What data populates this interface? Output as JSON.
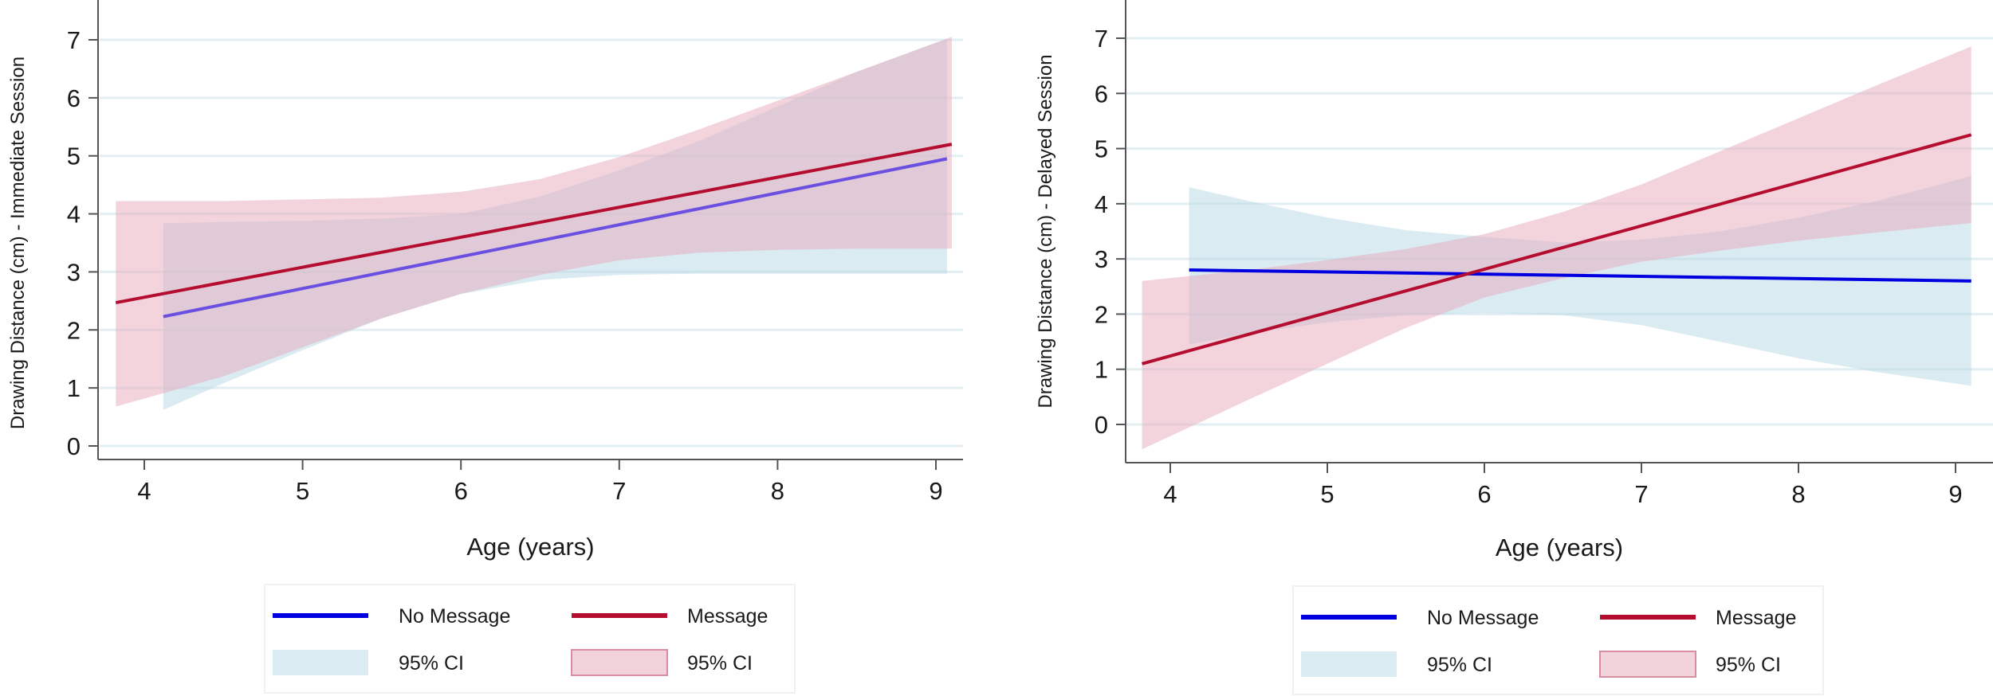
{
  "chart_data": [
    {
      "type": "line",
      "title": "",
      "xlabel": "Age (years)",
      "ylabel": "Drawing Distance (cm) - Immediate Session",
      "xlim": [
        3.65,
        9.25
      ],
      "ylim": [
        -0.3,
        7.8
      ],
      "xticks": [
        4,
        5,
        6,
        7,
        8,
        9
      ],
      "yticks": [
        0,
        1,
        2,
        3,
        4,
        5,
        6,
        7
      ],
      "grid": true,
      "legend_position": "bottom",
      "series": [
        {
          "name": "No Message",
          "color": "#0000e0",
          "x": [
            4.12,
            9.07
          ],
          "y": [
            2.23,
            4.95
          ],
          "ci": {
            "label": "95% CI",
            "color": "#dbebf2",
            "x": [
              4.12,
              4.5,
              5.0,
              5.5,
              6.0,
              6.5,
              7.0,
              7.5,
              8.0,
              8.5,
              9.07
            ],
            "lower": [
              0.62,
              1.08,
              1.65,
              2.2,
              2.62,
              2.86,
              2.95,
              2.97,
              2.97,
              2.97,
              2.97
            ],
            "upper": [
              3.84,
              3.86,
              3.88,
              3.92,
              4.0,
              4.3,
              4.75,
              5.25,
              5.85,
              6.45,
              7.02
            ]
          }
        },
        {
          "name": "Message",
          "color": "#b50d2f",
          "x": [
            3.82,
            9.1
          ],
          "y": [
            2.47,
            5.2
          ],
          "ci": {
            "label": "95% CI",
            "color": "#f2d3dc",
            "x": [
              3.82,
              4.5,
              5.0,
              5.5,
              6.0,
              6.5,
              7.0,
              7.5,
              8.0,
              8.5,
              9.1
            ],
            "lower": [
              0.68,
              1.2,
              1.7,
              2.2,
              2.62,
              2.95,
              3.2,
              3.33,
              3.38,
              3.4,
              3.4
            ],
            "upper": [
              4.22,
              4.22,
              4.25,
              4.28,
              4.38,
              4.6,
              4.98,
              5.45,
              5.95,
              6.45,
              7.05
            ]
          }
        }
      ],
      "legend": [
        {
          "label": "No Message",
          "kind": "line",
          "color": "#0000e0"
        },
        {
          "label": "Message",
          "kind": "line",
          "color": "#b50d2f"
        },
        {
          "label": "95% CI",
          "kind": "area",
          "color": "#dbebf2"
        },
        {
          "label": "95% CI",
          "kind": "area",
          "color": "#f2d3dc"
        }
      ]
    },
    {
      "type": "line",
      "title": "",
      "xlabel": "Age (years)",
      "ylabel": "Drawing Distance (cm) - Delayed Session",
      "xlim": [
        3.55,
        9.25
      ],
      "ylim": [
        -0.7,
        7.8
      ],
      "xticks": [
        4,
        5,
        6,
        7,
        8,
        9
      ],
      "yticks": [
        0,
        1,
        2,
        3,
        4,
        5,
        6,
        7
      ],
      "grid": true,
      "legend_position": "bottom",
      "series": [
        {
          "name": "No Message",
          "color": "#0000e0",
          "x": [
            4.12,
            9.1
          ],
          "y": [
            2.8,
            2.6
          ],
          "ci": {
            "label": "95% CI",
            "color": "#dbebf2",
            "x": [
              4.12,
              4.5,
              5.0,
              5.5,
              6.0,
              6.5,
              7.0,
              7.5,
              8.0,
              8.5,
              9.1
            ],
            "lower": [
              1.45,
              1.65,
              1.85,
              1.98,
              2.02,
              1.98,
              1.8,
              1.5,
              1.2,
              0.95,
              0.7
            ],
            "upper": [
              4.3,
              4.05,
              3.75,
              3.52,
              3.4,
              3.3,
              3.35,
              3.5,
              3.75,
              4.05,
              4.5
            ]
          }
        },
        {
          "name": "Message",
          "color": "#b50d2f",
          "x": [
            3.82,
            9.1
          ],
          "y": [
            1.1,
            5.25
          ],
          "ci": {
            "label": "95% CI",
            "color": "#f2d3dc",
            "x": [
              3.82,
              4.5,
              5.0,
              5.5,
              6.0,
              6.5,
              7.0,
              7.5,
              8.0,
              8.5,
              9.1
            ],
            "lower": [
              -0.45,
              0.45,
              1.1,
              1.75,
              2.3,
              2.65,
              2.95,
              3.15,
              3.33,
              3.48,
              3.65
            ],
            "upper": [
              2.6,
              2.8,
              2.98,
              3.18,
              3.45,
              3.85,
              4.35,
              4.95,
              5.55,
              6.15,
              6.85
            ]
          }
        }
      ],
      "legend": [
        {
          "label": "No Message",
          "kind": "line",
          "color": "#0000e0"
        },
        {
          "label": "Message",
          "kind": "line",
          "color": "#b50d2f"
        },
        {
          "label": "95% CI",
          "kind": "area",
          "color": "#dbebf2"
        },
        {
          "label": "95% CI",
          "kind": "area",
          "color": "#f2d3dc"
        }
      ]
    }
  ]
}
